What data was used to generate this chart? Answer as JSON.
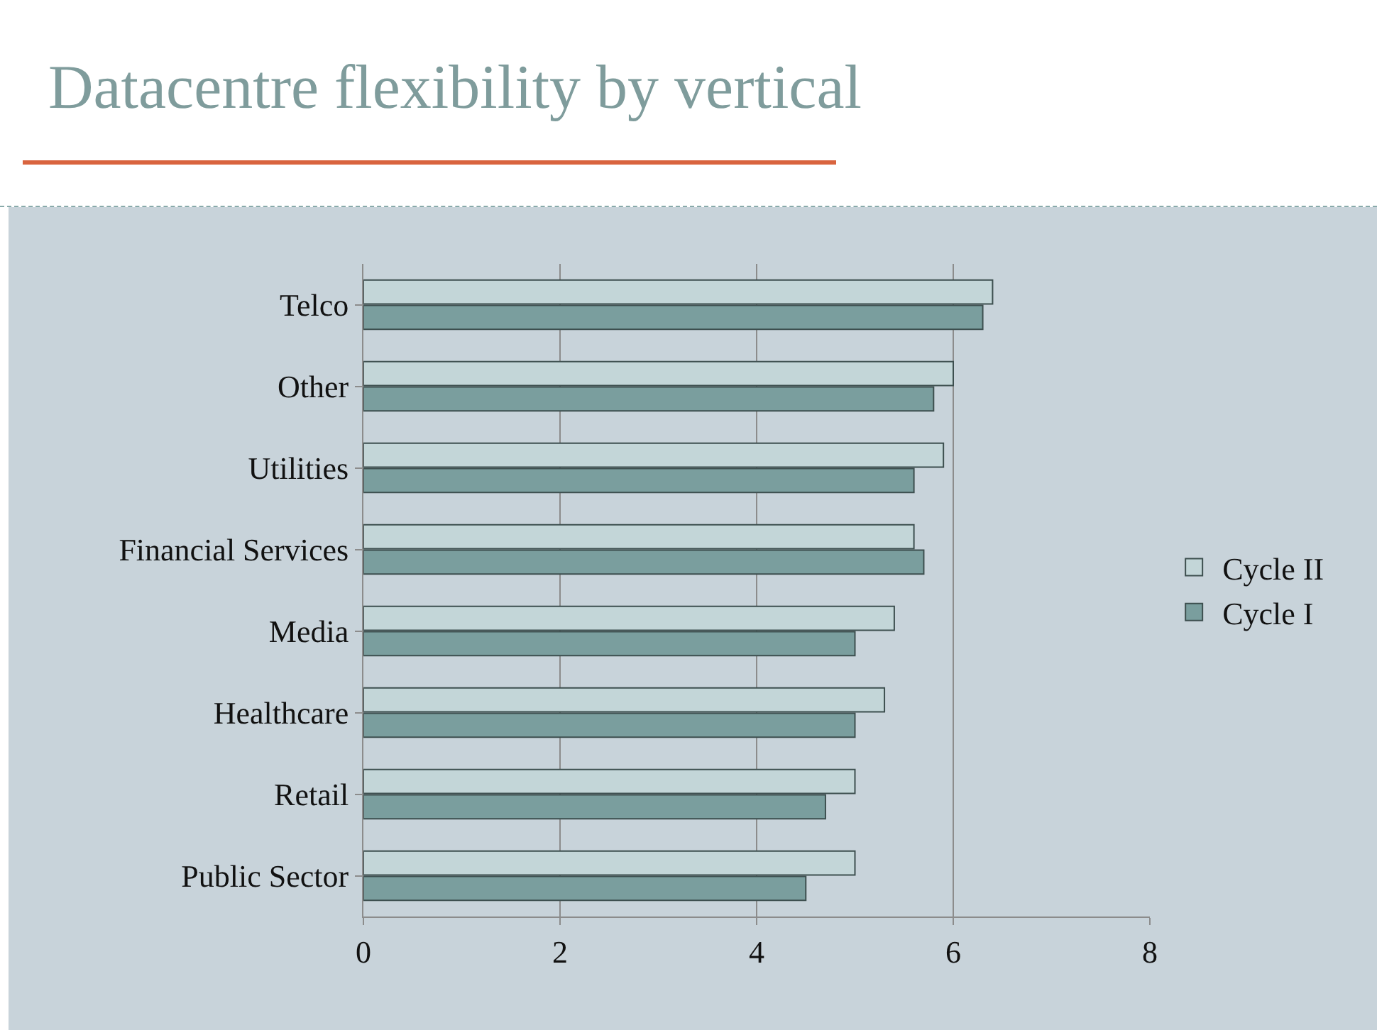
{
  "chart_data": {
    "type": "bar",
    "orientation": "horizontal",
    "title": "Datacentre flexibility by vertical",
    "categories": [
      "Telco",
      "Other",
      "Utilities",
      "Financial Services",
      "Media",
      "Healthcare",
      "Retail",
      "Public Sector"
    ],
    "series": [
      {
        "name": "Cycle II",
        "color": "#c3d6d8",
        "values": [
          6.4,
          6.0,
          5.9,
          5.6,
          5.4,
          5.3,
          5.0,
          5.0
        ]
      },
      {
        "name": "Cycle I",
        "color": "#7a9e9e",
        "values": [
          6.3,
          5.8,
          5.6,
          5.7,
          5.0,
          5.0,
          4.7,
          4.5
        ]
      }
    ],
    "xlim": [
      0,
      8
    ],
    "xticks": [
      0,
      2,
      4,
      6,
      8
    ],
    "grid": "x",
    "legend": "right"
  }
}
